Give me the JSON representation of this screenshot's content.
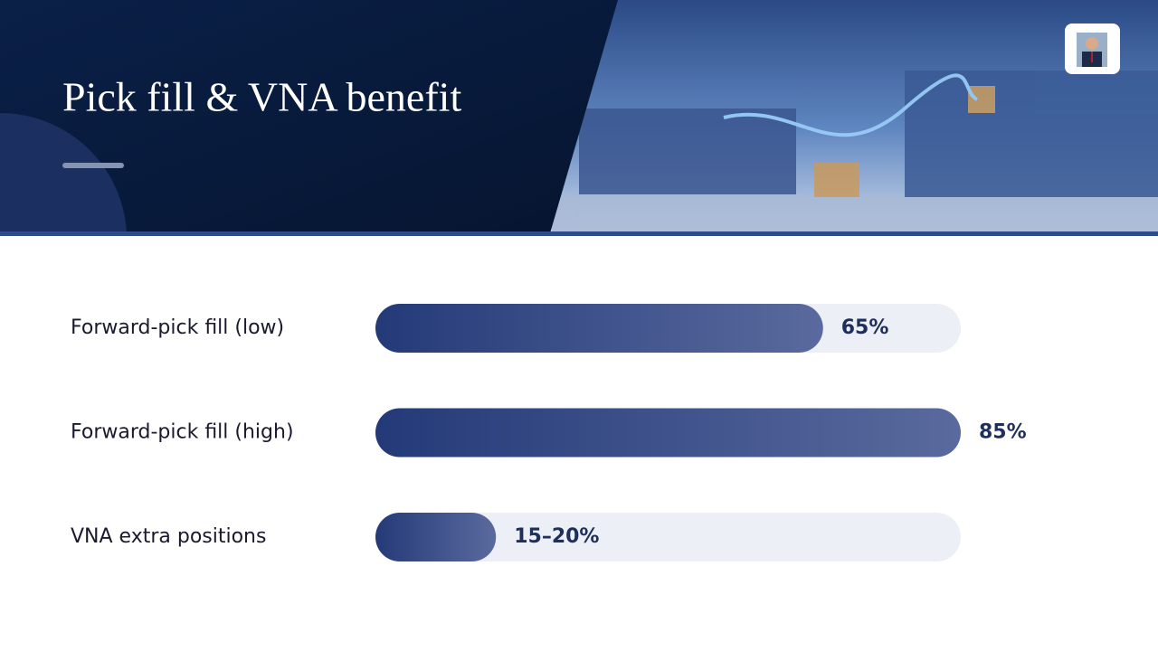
{
  "chart_data": {
    "type": "bar",
    "orientation": "horizontal",
    "title": "Pick fill & VNA benefit",
    "categories": [
      "Forward-pick fill (low)",
      "Forward-pick fill (high)",
      "VNA extra positions"
    ],
    "values": [
      65,
      85,
      17.5
    ],
    "value_labels": [
      "65%",
      "85%",
      "15–20%"
    ],
    "xlim": [
      0,
      85
    ],
    "color": "#243a78"
  }
}
